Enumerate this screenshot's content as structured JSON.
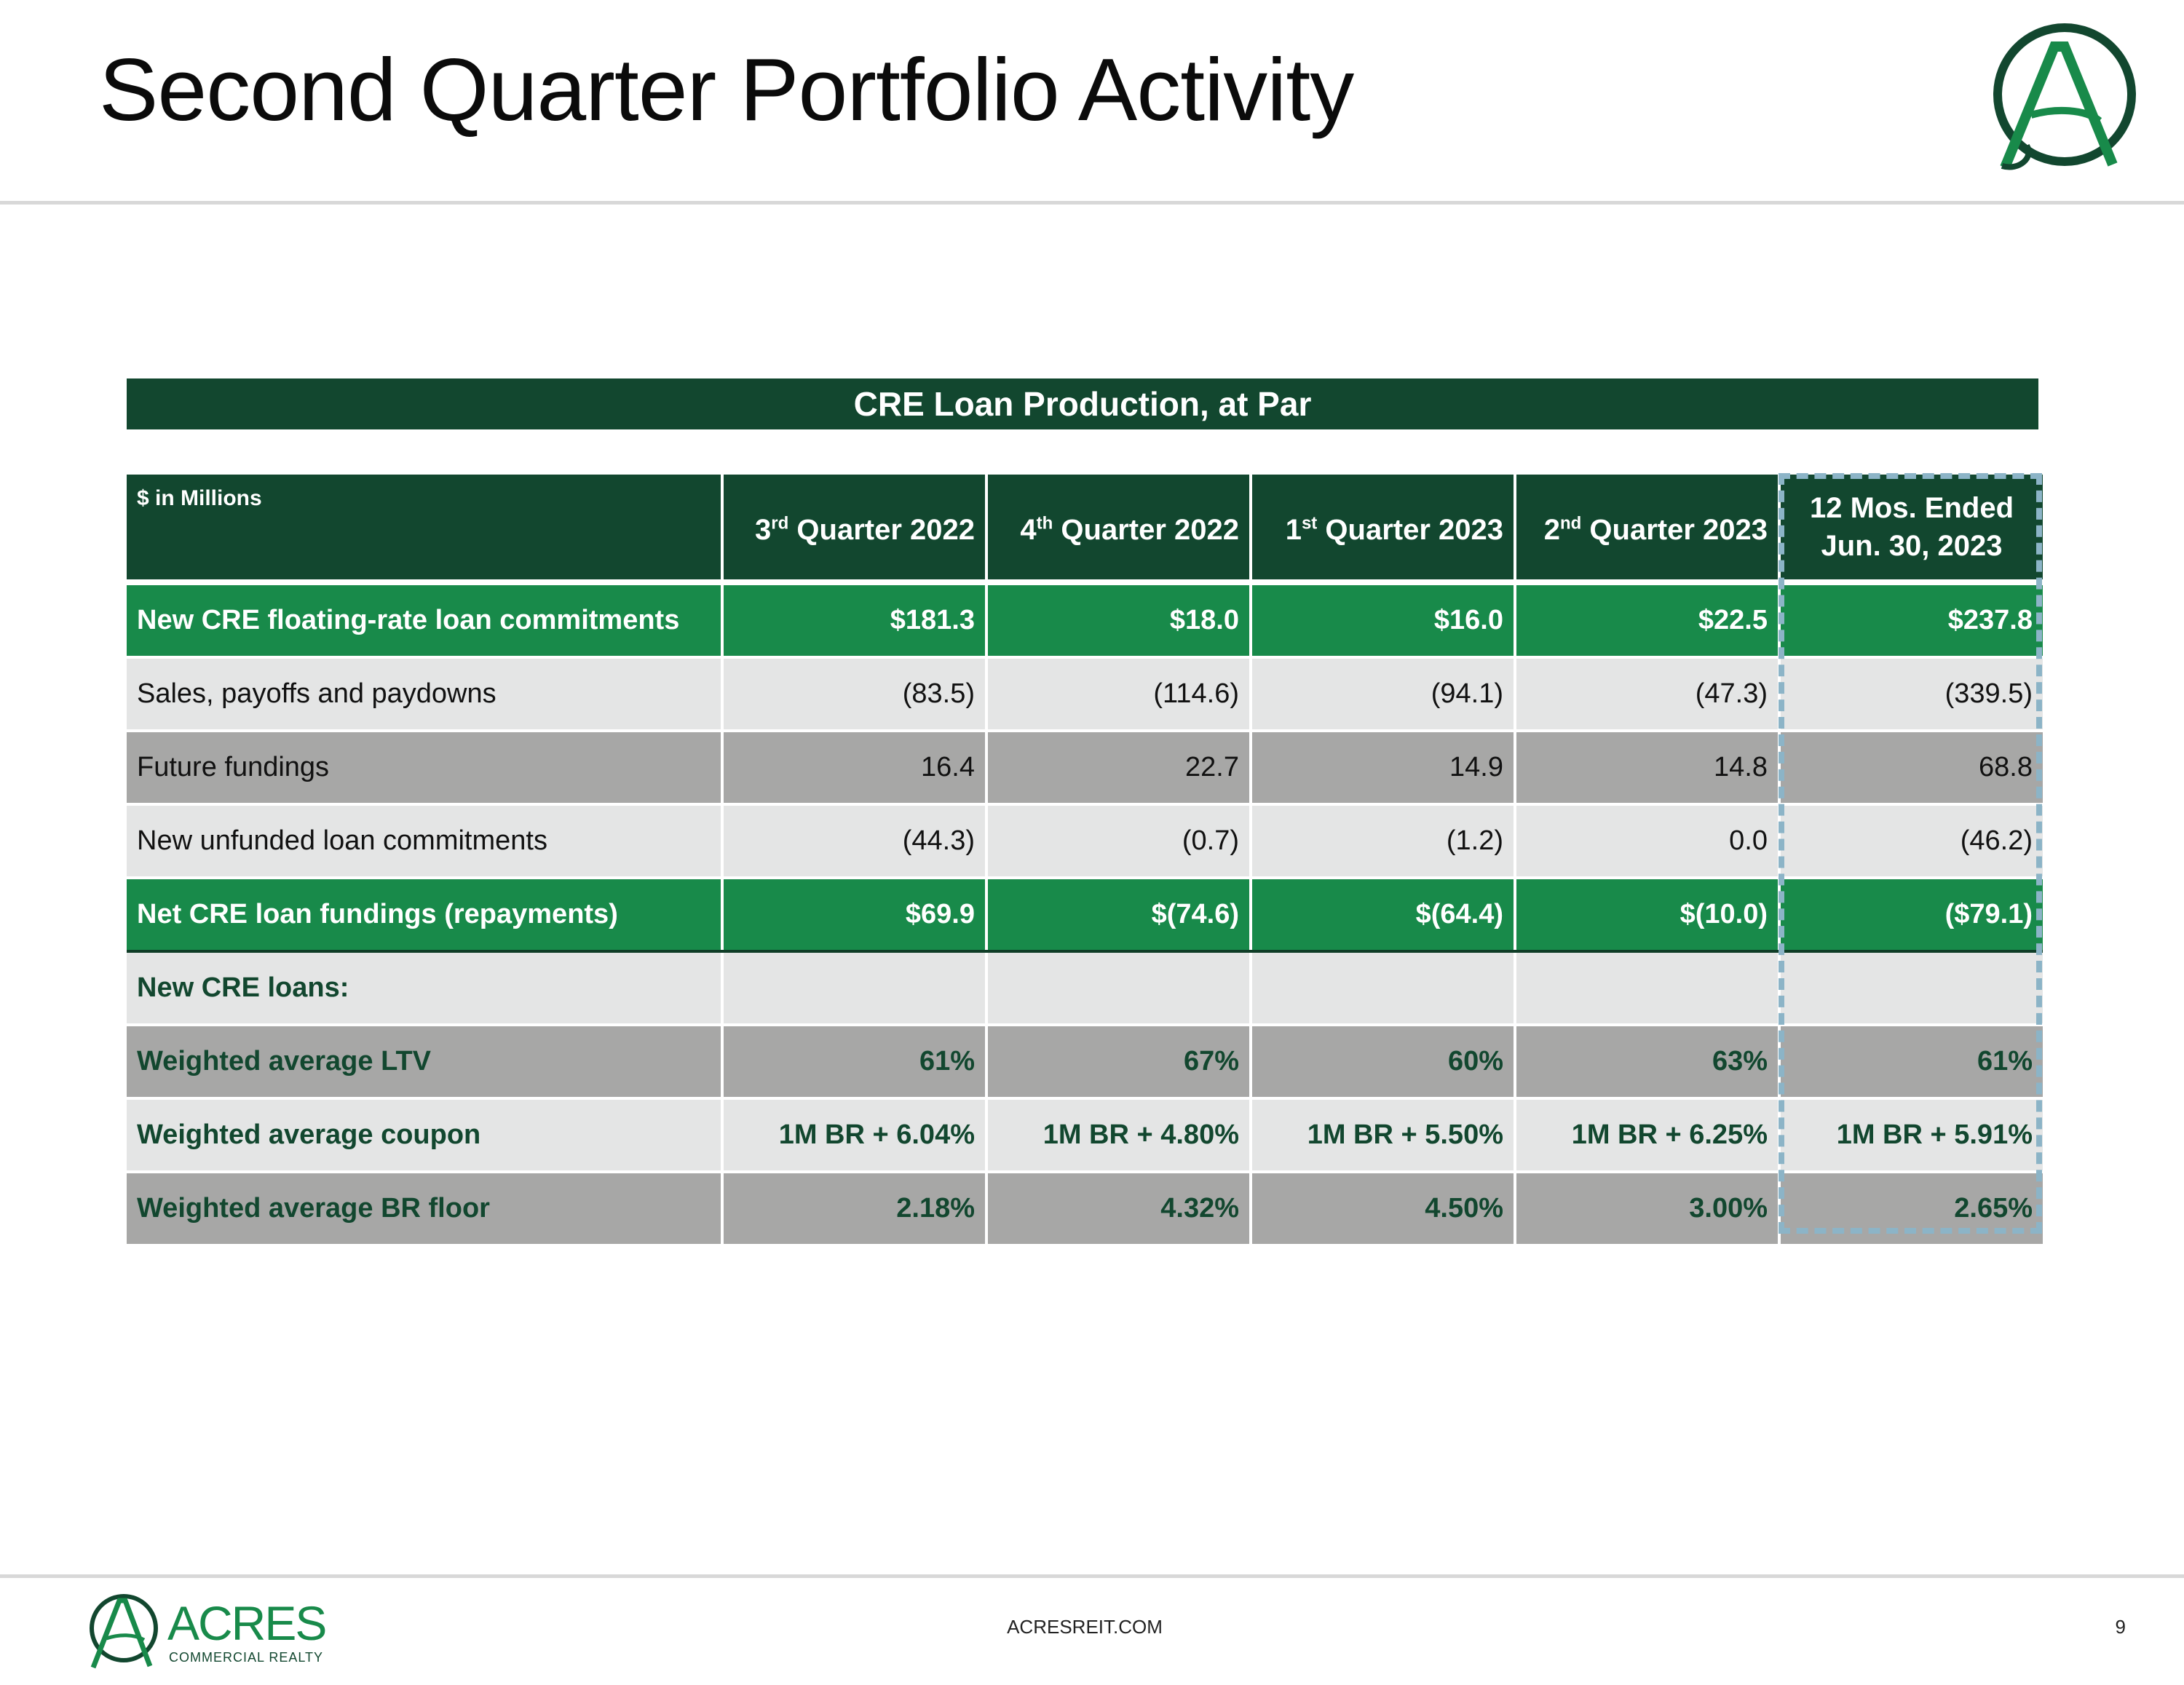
{
  "title": "Second Quarter Portfolio Activity",
  "banner": "CRE Loan Production, at Par",
  "table": {
    "unit_label": "$ in Millions",
    "columns": [
      {
        "base": "3",
        "sup": "rd",
        "rest": " Quarter 2022"
      },
      {
        "base": "4",
        "sup": "th",
        "rest": " Quarter 2022"
      },
      {
        "base": "1",
        "sup": "st",
        "rest": " Quarter 2023"
      },
      {
        "base": "2",
        "sup": "nd",
        "rest": " Quarter 2023"
      },
      {
        "line1": "12 Mos. Ended",
        "line2": "Jun. 30, 2023"
      }
    ],
    "rows": [
      {
        "label": "New CRE floating-rate loan commitments",
        "values": [
          "$181.3",
          "$18.0",
          "$16.0",
          "$22.5",
          "$237.8"
        ]
      },
      {
        "label": "Sales, payoffs and paydowns",
        "values": [
          "(83.5)",
          "(114.6)",
          "(94.1)",
          "(47.3)",
          "(339.5)"
        ]
      },
      {
        "label": "Future fundings",
        "values": [
          "16.4",
          "22.7",
          "14.9",
          "14.8",
          "68.8"
        ]
      },
      {
        "label": "New unfunded loan commitments",
        "values": [
          "(44.3)",
          "(0.7)",
          "(1.2)",
          "0.0",
          "(46.2)"
        ]
      },
      {
        "label": "Net CRE loan fundings (repayments)",
        "values": [
          "$69.9",
          "$(74.6)",
          "$(64.4)",
          "$(10.0)",
          "($79.1)"
        ]
      },
      {
        "label": "New CRE loans:",
        "values": [
          "",
          "",
          "",
          "",
          ""
        ]
      },
      {
        "label": "Weighted average LTV",
        "values": [
          "61%",
          "67%",
          "60%",
          "63%",
          "61%"
        ]
      },
      {
        "label": "Weighted average coupon",
        "values": [
          "1M BR + 6.04%",
          "1M BR + 4.80%",
          "1M BR + 5.50%",
          "1M BR + 6.25%",
          "1M BR + 5.91%"
        ]
      },
      {
        "label": "Weighted average BR floor",
        "values": [
          "2.18%",
          "4.32%",
          "4.50%",
          "3.00%",
          "2.65%"
        ]
      }
    ]
  },
  "footer": {
    "brand": "ACRES",
    "brand_sub": "COMMERCIAL REALTY",
    "url": "ACRESREIT.COM",
    "page": "9"
  },
  "colors": {
    "dark_green": "#12472f",
    "bright_green": "#188a4a",
    "light_gray": "#e4e5e5",
    "mid_gray": "#a7a7a6",
    "dash_blue": "#8cb4c7"
  }
}
